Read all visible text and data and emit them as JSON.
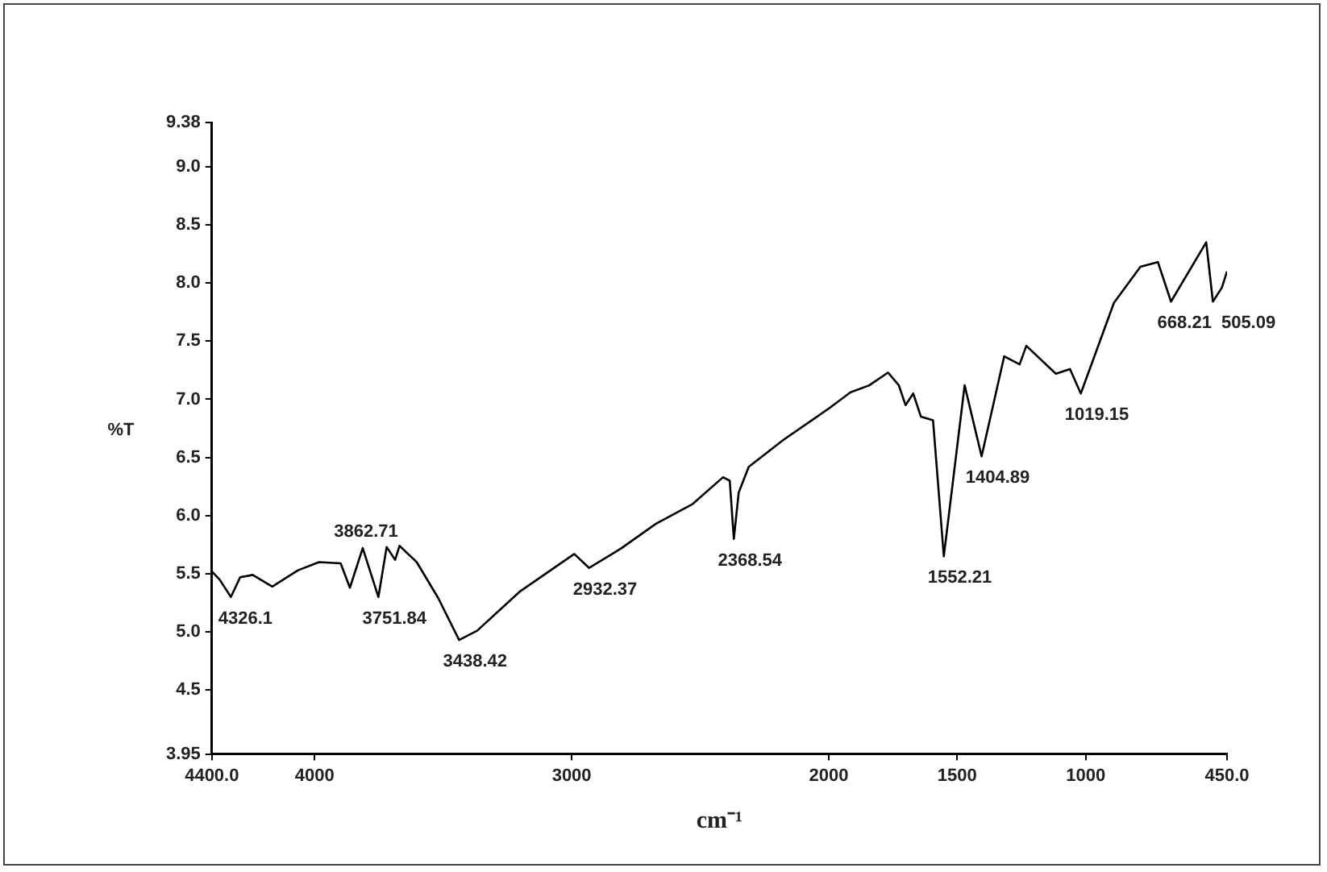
{
  "chart_data": {
    "type": "line",
    "xlabel": "cm⁻¹",
    "ylabel": "%T",
    "x": [
      4400,
      4370,
      4326,
      4290,
      4241,
      4165,
      4065,
      3983,
      3899,
      3863,
      3813,
      3752,
      3720,
      3687,
      3670,
      3603,
      3519,
      3438,
      3368,
      3200,
      2990,
      2932,
      2806,
      2672,
      2529,
      2411,
      2385,
      2369,
      2350,
      2311,
      2177,
      2000,
      1915,
      1842,
      1769,
      1727,
      1701,
      1671,
      1641,
      1594,
      1552,
      1471,
      1405,
      1317,
      1257,
      1231,
      1116,
      1061,
      1019,
      890,
      787,
      719,
      668,
      531,
      505,
      470,
      450
    ],
    "series": [
      {
        "color": "#000000",
        "values": [
          5.52,
          5.45,
          5.3,
          5.47,
          5.49,
          5.39,
          5.53,
          5.6,
          5.59,
          5.38,
          5.72,
          5.3,
          5.73,
          5.62,
          5.74,
          5.6,
          5.29,
          4.93,
          5.01,
          5.35,
          5.67,
          5.55,
          5.72,
          5.93,
          6.1,
          6.33,
          6.3,
          5.8,
          6.2,
          6.42,
          6.65,
          6.92,
          7.06,
          7.12,
          7.23,
          7.12,
          6.95,
          7.05,
          6.85,
          6.82,
          5.65,
          7.12,
          6.51,
          7.37,
          7.3,
          7.46,
          7.22,
          7.26,
          7.05,
          7.83,
          8.14,
          8.18,
          7.84,
          8.35,
          7.84,
          7.96,
          8.1
        ]
      }
    ],
    "xlim": [
      4400,
      450
    ],
    "xticks": [
      {
        "value": 4400,
        "label": "4400.0"
      },
      4000,
      3000,
      2000,
      1500,
      1000,
      {
        "value": 450,
        "label": "450.0"
      }
    ],
    "ylim": [
      3.95,
      9.38
    ],
    "yticks": [
      3.95,
      4.5,
      {
        "value": 5,
        "label": "5.0"
      },
      5.5,
      {
        "value": 6,
        "label": "6.0"
      },
      6.5,
      {
        "value": 7,
        "label": "7.0"
      },
      7.5,
      {
        "value": 8,
        "label": "8.0"
      },
      8.5,
      {
        "value": 9,
        "label": "9.0"
      },
      9.38
    ],
    "annotations": [
      {
        "text": "4326.1",
        "x": 4326.1,
        "y": 5.3
      },
      {
        "text": "3751.84",
        "x": 3751.84,
        "y": 5.3
      },
      {
        "text": "3862.71",
        "x": 3862.71,
        "y": 5.38
      },
      {
        "text": "3438.42",
        "x": 3438.42,
        "y": 4.93
      },
      {
        "text": "2932.37",
        "x": 2932.37,
        "y": 5.55
      },
      {
        "text": "2368.54",
        "x": 2368.54,
        "y": 5.8
      },
      {
        "text": "1552.21",
        "x": 1552.21,
        "y": 5.65
      },
      {
        "text": "1404.89",
        "x": 1404.89,
        "y": 6.51
      },
      {
        "text": "1019.15",
        "x": 1019.15,
        "y": 7.05
      },
      {
        "text": "668.21",
        "x": 668.21,
        "y": 7.84
      },
      {
        "text": "505.09",
        "x": 505.09,
        "y": 7.84
      }
    ]
  }
}
